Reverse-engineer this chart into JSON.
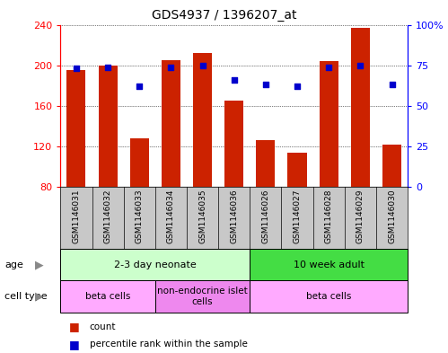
{
  "title": "GDS4937 / 1396207_at",
  "samples": [
    "GSM1146031",
    "GSM1146032",
    "GSM1146033",
    "GSM1146034",
    "GSM1146035",
    "GSM1146036",
    "GSM1146026",
    "GSM1146027",
    "GSM1146028",
    "GSM1146029",
    "GSM1146030"
  ],
  "counts": [
    195,
    200,
    128,
    205,
    212,
    165,
    126,
    114,
    204,
    237,
    122
  ],
  "percentiles": [
    73,
    74,
    62,
    74,
    75,
    66,
    63,
    62,
    74,
    75,
    63
  ],
  "ylim_left": [
    80,
    240
  ],
  "ylim_right": [
    0,
    100
  ],
  "yticks_left": [
    80,
    120,
    160,
    200,
    240
  ],
  "yticks_right": [
    0,
    25,
    50,
    75,
    100
  ],
  "ytick_labels_right": [
    "0",
    "25",
    "50",
    "75",
    "100%"
  ],
  "bar_color": "#cc2200",
  "dot_color": "#0000cc",
  "bg_labels": "#c8c8c8",
  "age_groups": [
    {
      "label": "2-3 day neonate",
      "start": 0,
      "end": 6,
      "color": "#ccffcc"
    },
    {
      "label": "10 week adult",
      "start": 6,
      "end": 11,
      "color": "#44dd44"
    }
  ],
  "cell_type_groups": [
    {
      "label": "beta cells",
      "start": 0,
      "end": 3,
      "color": "#ffaaff"
    },
    {
      "label": "non-endocrine islet\ncells",
      "start": 3,
      "end": 6,
      "color": "#ee88ee"
    },
    {
      "label": "beta cells",
      "start": 6,
      "end": 11,
      "color": "#ffaaff"
    }
  ],
  "legend_count_color": "#cc2200",
  "legend_dot_color": "#0000cc",
  "bar_width": 0.6
}
